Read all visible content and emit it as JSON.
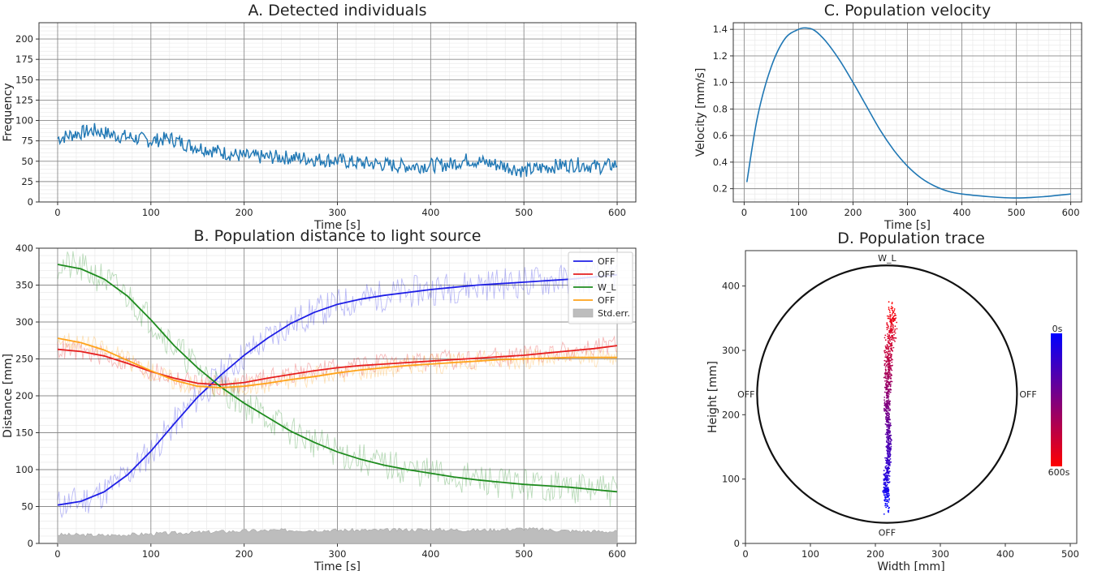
{
  "chart_data": [
    {
      "id": "A",
      "type": "line",
      "title": "A. Detected individuals",
      "xlabel": "Time [s]",
      "ylabel": "Frequency",
      "xlim": [
        -20,
        620
      ],
      "ylim": [
        0,
        220
      ],
      "xticks": [
        0,
        100,
        200,
        300,
        400,
        500,
        600
      ],
      "yticks": [
        0,
        25,
        50,
        75,
        100,
        125,
        150,
        175,
        200
      ],
      "grid": true,
      "series": [
        {
          "color": "#1f77b4",
          "x": [
            0,
            20,
            40,
            60,
            80,
            100,
            120,
            140,
            160,
            180,
            200,
            220,
            240,
            260,
            280,
            300,
            320,
            340,
            360,
            380,
            400,
            420,
            440,
            460,
            480,
            500,
            520,
            540,
            560,
            580,
            600
          ],
          "y": [
            78,
            84,
            88,
            82,
            79,
            75,
            78,
            70,
            65,
            60,
            56,
            55,
            55,
            54,
            52,
            51,
            48,
            47,
            45,
            44,
            45,
            46,
            52,
            48,
            44,
            38,
            42,
            45,
            46,
            43,
            46
          ]
        }
      ]
    },
    {
      "id": "B",
      "type": "line",
      "title": "B. Population distance to light source",
      "xlabel": "Time [s]",
      "ylabel": "Distance [mm]",
      "xlim": [
        -20,
        620
      ],
      "ylim": [
        0,
        400
      ],
      "xticks": [
        0,
        100,
        200,
        300,
        400,
        500,
        600
      ],
      "yticks": [
        0,
        50,
        100,
        150,
        200,
        250,
        300,
        350,
        400
      ],
      "grid": true,
      "legend": "top-right",
      "series": [
        {
          "name": "OFF",
          "color": "#1f1fe6",
          "x": [
            0,
            25,
            50,
            75,
            100,
            125,
            150,
            175,
            200,
            225,
            250,
            275,
            300,
            325,
            350,
            375,
            400,
            425,
            450,
            475,
            500,
            525,
            550,
            575,
            600
          ],
          "y": [
            52,
            57,
            70,
            93,
            125,
            162,
            198,
            228,
            255,
            278,
            298,
            313,
            324,
            331,
            336,
            340,
            344,
            347,
            350,
            352,
            354,
            356,
            358,
            361,
            364
          ]
        },
        {
          "name": "OFF",
          "color": "#e61f1f",
          "x": [
            0,
            25,
            50,
            75,
            100,
            125,
            150,
            175,
            200,
            225,
            250,
            275,
            300,
            325,
            350,
            375,
            400,
            425,
            450,
            475,
            500,
            525,
            550,
            575,
            600
          ],
          "y": [
            263,
            260,
            254,
            244,
            233,
            224,
            217,
            215,
            218,
            224,
            229,
            234,
            238,
            241,
            243,
            245,
            247,
            249,
            251,
            253,
            255,
            258,
            261,
            264,
            268
          ]
        },
        {
          "name": "W_L",
          "color": "#1f8c1f",
          "x": [
            0,
            25,
            50,
            75,
            100,
            125,
            150,
            175,
            200,
            225,
            250,
            275,
            300,
            325,
            350,
            375,
            400,
            425,
            450,
            475,
            500,
            525,
            550,
            575,
            600
          ],
          "y": [
            378,
            372,
            358,
            335,
            303,
            268,
            238,
            212,
            190,
            171,
            152,
            137,
            124,
            114,
            106,
            100,
            95,
            90,
            86,
            83,
            80,
            78,
            76,
            73,
            70
          ]
        },
        {
          "name": "OFF",
          "color": "#ffa31a",
          "x": [
            0,
            25,
            50,
            75,
            100,
            125,
            150,
            175,
            200,
            225,
            250,
            275,
            300,
            325,
            350,
            375,
            400,
            425,
            450,
            475,
            500,
            525,
            550,
            575,
            600
          ],
          "y": [
            278,
            272,
            262,
            248,
            234,
            221,
            213,
            211,
            213,
            217,
            222,
            226,
            231,
            235,
            238,
            241,
            243,
            245,
            247,
            249,
            250,
            251,
            252,
            252,
            252
          ]
        }
      ],
      "band": {
        "name": "Std.err.",
        "color": "#bdbdbd",
        "x": [
          0,
          50,
          100,
          150,
          200,
          250,
          300,
          350,
          400,
          450,
          500,
          550,
          600
        ],
        "y": [
          12,
          11,
          13,
          15,
          17,
          18,
          18,
          18,
          19,
          18,
          20,
          17,
          16
        ]
      }
    },
    {
      "id": "C",
      "type": "line",
      "title": "C. Population velocity",
      "xlabel": "Time [s]",
      "ylabel": "Velocity [mm/s]",
      "xlim": [
        -20,
        620
      ],
      "ylim": [
        0.1,
        1.45
      ],
      "xticks": [
        0,
        100,
        200,
        300,
        400,
        500,
        600
      ],
      "yticks": [
        0.2,
        0.4,
        0.6,
        0.8,
        1.0,
        1.2,
        1.4
      ],
      "ytick_labels": [
        "0.2",
        "0.4",
        "0.6",
        "0.8",
        "1.0",
        "1.2",
        "1.4"
      ],
      "grid": true,
      "series": [
        {
          "color": "#1f77b4",
          "x": [
            5,
            25,
            50,
            75,
            100,
            115,
            130,
            150,
            175,
            200,
            225,
            250,
            275,
            300,
            325,
            350,
            375,
            400,
            450,
            500,
            550,
            600
          ],
          "y": [
            0.25,
            0.75,
            1.12,
            1.33,
            1.4,
            1.41,
            1.39,
            1.31,
            1.17,
            1.0,
            0.82,
            0.64,
            0.49,
            0.37,
            0.28,
            0.22,
            0.18,
            0.16,
            0.14,
            0.13,
            0.14,
            0.16
          ]
        }
      ]
    },
    {
      "id": "D",
      "type": "scatter",
      "title": "D. Population trace",
      "xlabel": "Width [mm]",
      "ylabel": "Height [mm]",
      "xlim": [
        0,
        510
      ],
      "ylim": [
        0,
        455
      ],
      "xticks": [
        0,
        100,
        200,
        300,
        400,
        500
      ],
      "yticks": [
        0,
        100,
        200,
        300,
        400
      ],
      "arena": {
        "cx": 218,
        "cy": 232,
        "r": 200
      },
      "arena_labels": {
        "top": "W_L",
        "bottom": "OFF",
        "left": "OFF",
        "right": "OFF"
      },
      "label_color": "#ff0000",
      "colorbar": {
        "top_label": "0s",
        "bottom_label": "600s",
        "from_color": "#0000ff",
        "to_color": "#ff0000"
      },
      "trace": {
        "x": [
          218,
          216,
          219,
          221,
          220,
          218,
          219,
          220,
          221,
          222,
          223,
          224,
          225,
          226,
          226
        ],
        "y": [
          60,
          90,
          120,
          150,
          180,
          210,
          240,
          265,
          285,
          300,
          315,
          330,
          340,
          350,
          360
        ],
        "spread_x": [
          6,
          6,
          5,
          5,
          5,
          5,
          6,
          7,
          8,
          9,
          10,
          10,
          10,
          9,
          8
        ]
      }
    }
  ]
}
